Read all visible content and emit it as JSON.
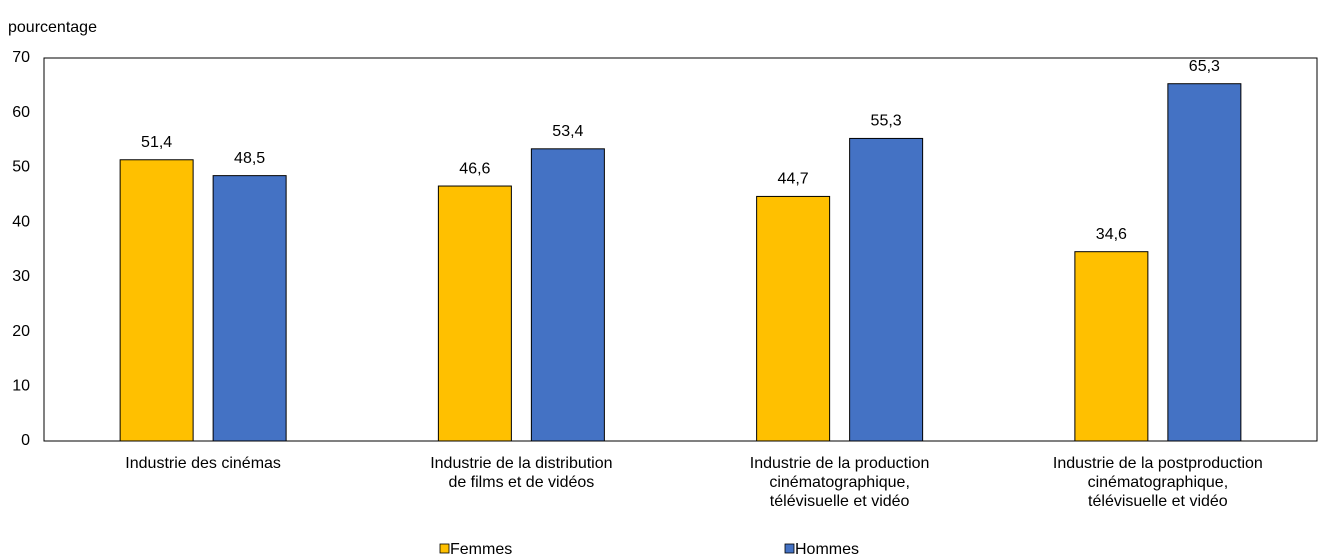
{
  "chart_data": {
    "type": "bar",
    "y_label": "pourcentage",
    "categories": [
      "Industrie des cinémas",
      "Industrie de la distribution\nde films et de vidéos",
      "Industrie de la production\ncinématographique,\ntélévisuelle et vidéo",
      "Industrie de la postproduction\ncinématographique,\ntélévisuelle et vidéo"
    ],
    "series": [
      {
        "name": "Femmes",
        "color": "#ffc000",
        "values": [
          51.4,
          46.6,
          44.7,
          34.6
        ],
        "value_labels": [
          "51,4",
          "46,6",
          "44,7",
          "34,6"
        ]
      },
      {
        "name": "Hommes",
        "color": "#4472c4",
        "values": [
          48.5,
          53.4,
          55.3,
          65.3
        ],
        "value_labels": [
          "48,5",
          "53,4",
          "55,3",
          "65,3"
        ]
      }
    ],
    "ylim": [
      0,
      70
    ],
    "yticks": [
      0,
      10,
      20,
      30,
      40,
      50,
      60,
      70
    ],
    "grid": false,
    "legend": "bottom"
  }
}
